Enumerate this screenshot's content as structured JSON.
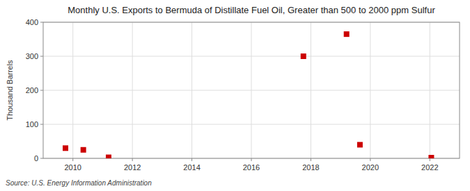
{
  "chart_data": {
    "type": "scatter",
    "title": "Monthly U.S. Exports to Bermuda of Distillate Fuel Oil, Greater than 500 to 2000 ppm Sulfur",
    "y_label": "Thousand Barrels",
    "annotations": [
      "Source: U.S. Energy Information Administration"
    ],
    "x": [
      2009.75,
      2010.35,
      2011.2,
      2017.75,
      2019.2,
      2019.65,
      2022.05
    ],
    "values": [
      30,
      25,
      3,
      300,
      365,
      40,
      2
    ],
    "color": "#cc0000",
    "marker": "square",
    "xlim": [
      2009,
      2023
    ],
    "xticks": [
      2010,
      2012,
      2014,
      2016,
      2018,
      2020,
      2022
    ],
    "ylim": [
      0,
      400
    ],
    "yticks": [
      0,
      100,
      200,
      300,
      400
    ],
    "grid": true
  }
}
